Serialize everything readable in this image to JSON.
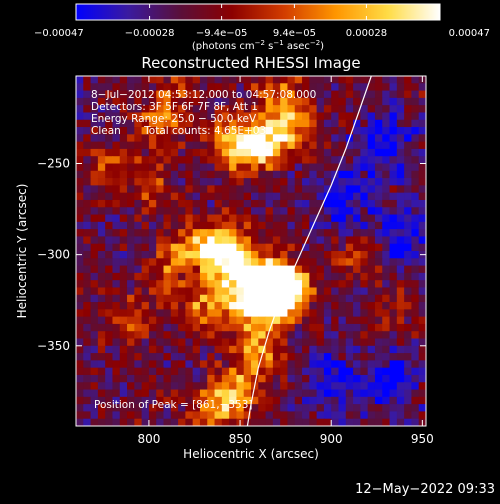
{
  "chart_data": {
    "type": "heatmap",
    "title": "Reconstructed RHESSI Image",
    "xlabel": "Heliocentric X (arcsec)",
    "ylabel": "Heliocentric Y (arcsec)",
    "xlim": [
      760,
      952
    ],
    "ylim": [
      -394,
      -202
    ],
    "x_ticks": [
      800,
      850,
      900,
      950
    ],
    "y_ticks": [
      -250,
      -300,
      -350
    ],
    "x_tick_labels": [
      "800",
      "850",
      "900",
      "950"
    ],
    "y_tick_labels": [
      "−250",
      "−300",
      "−350"
    ],
    "colorbar": {
      "range": [
        -0.00047,
        0.00047
      ],
      "tick_values": [
        -0.00047,
        -0.00028,
        -9.4e-05,
        9.4e-05,
        0.00028,
        0.00047
      ],
      "tick_labels": [
        "−0.00047",
        "−0.00028",
        "−9.4e−05",
        "9.4e−05",
        "0.00028",
        "0.00047"
      ],
      "units_base": "(photons cm",
      "units_exp1": "−2",
      "units_mid1": " s",
      "units_exp2": "−1",
      "units_mid2": " asec",
      "units_exp3": "−2",
      "units_end": ")",
      "colors": [
        "#0000ff",
        "#3a1aa0",
        "#5a0f3a",
        "#8c0000",
        "#d23c00",
        "#ff9600",
        "#ffdc46",
        "#ffffff"
      ]
    },
    "annotations": [
      "8−Jul−2012 04:53:12.000 to 04:57:08.000",
      "Detectors: 3F 5F 6F 7F 8F, Att 1",
      "Energy Range: 25.0 − 50.0 keV",
      "Clean       Total counts: 4.65E+03"
    ],
    "peak_label": "Position of Peak = [861,−353]",
    "peak_position": [
      861,
      -353
    ],
    "limb": [
      [
        922,
        -202
      ],
      [
        915,
        -222
      ],
      [
        908,
        -242
      ],
      [
        900,
        -262
      ],
      [
        891,
        -282
      ],
      [
        882,
        -302
      ],
      [
        873,
        -322
      ],
      [
        866,
        -342
      ],
      [
        860,
        -362
      ],
      [
        856,
        -382
      ],
      [
        854,
        -394
      ]
    ],
    "limb_color": "#ffffff",
    "sources": [
      {
        "x": 865,
        "y": -315,
        "amp": 1.0
      },
      {
        "x": 875,
        "y": -318,
        "amp": 0.95
      },
      {
        "x": 868,
        "y": -325,
        "amp": 0.8
      },
      {
        "x": 845,
        "y": -302,
        "amp": 0.7
      },
      {
        "x": 838,
        "y": -294,
        "amp": 0.6
      },
      {
        "x": 820,
        "y": -296,
        "amp": 0.45
      },
      {
        "x": 828,
        "y": -330,
        "amp": 0.45
      },
      {
        "x": 845,
        "y": -318,
        "amp": 0.5
      },
      {
        "x": 855,
        "y": -330,
        "amp": 0.45
      },
      {
        "x": 860,
        "y": -353,
        "amp": 0.55
      },
      {
        "x": 848,
        "y": -375,
        "amp": 0.55
      },
      {
        "x": 838,
        "y": -385,
        "amp": 0.45
      },
      {
        "x": 852,
        "y": -242,
        "amp": 0.6
      },
      {
        "x": 866,
        "y": -238,
        "amp": 0.65
      },
      {
        "x": 880,
        "y": -228,
        "amp": 0.5
      },
      {
        "x": 870,
        "y": -210,
        "amp": 0.4
      },
      {
        "x": 845,
        "y": -238,
        "amp": 0.35
      },
      {
        "x": 805,
        "y": -228,
        "amp": 0.35
      },
      {
        "x": 815,
        "y": -214,
        "amp": 0.3
      },
      {
        "x": 778,
        "y": -250,
        "amp": 0.3
      },
      {
        "x": 800,
        "y": -260,
        "amp": 0.35
      },
      {
        "x": 790,
        "y": -335,
        "amp": 0.3
      },
      {
        "x": 808,
        "y": -310,
        "amp": 0.3
      },
      {
        "x": 915,
        "y": -300,
        "amp": 0.25
      },
      {
        "x": 935,
        "y": -330,
        "amp": 0.2
      }
    ],
    "negatives": [
      {
        "x": 930,
        "y": -240,
        "amp": 0.35
      },
      {
        "x": 940,
        "y": -290,
        "amp": 0.3
      },
      {
        "x": 905,
        "y": -270,
        "amp": 0.3
      },
      {
        "x": 930,
        "y": -370,
        "amp": 0.3
      },
      {
        "x": 900,
        "y": -370,
        "amp": 0.25
      }
    ]
  },
  "footer": {
    "timestamp": "12−May−2022 09:33"
  }
}
